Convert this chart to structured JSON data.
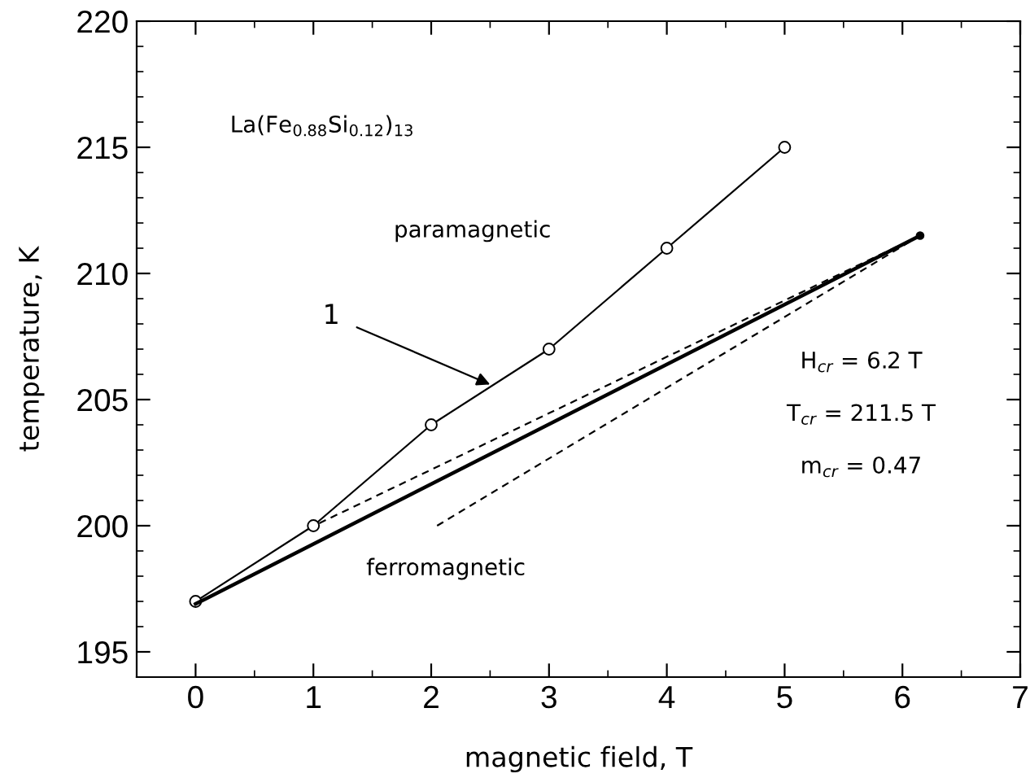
{
  "chart_data": {
    "type": "line",
    "xlabel": "magnetic field, T",
    "ylabel": "temperature, K",
    "xlim": [
      -0.5,
      7
    ],
    "ylim": [
      194,
      220
    ],
    "xticks": [
      0,
      1,
      2,
      3,
      4,
      5,
      6,
      7
    ],
    "yticks": [
      195,
      200,
      205,
      210,
      215,
      220
    ],
    "grid": false,
    "series": [
      {
        "color": "#000000",
        "marker": "circle",
        "line_style": "solid",
        "x": [
          0,
          1,
          2,
          3,
          4,
          5
        ],
        "values": [
          197,
          200,
          204,
          207,
          211,
          215
        ]
      },
      {
        "color": "#000000",
        "marker": "none",
        "line_style": "solid",
        "x": [
          0,
          6.15
        ],
        "values": [
          196.9,
          211.5
        ]
      },
      {
        "color": "#000000",
        "marker": "none",
        "line_style": "dashed",
        "x": [
          1.05,
          6.15
        ],
        "values": [
          200.1,
          211.5
        ]
      },
      {
        "color": "#000000",
        "marker": "none",
        "line_style": "dashed",
        "x": [
          2.05,
          6.15
        ],
        "values": [
          200,
          211.5
        ]
      },
      {
        "type": "scatter",
        "color": "#000000",
        "marker": "circle",
        "x": [
          6.15
        ],
        "values": [
          211.5
        ]
      }
    ],
    "annotations": [
      "La(Fe$_{0.88}$Si$_{0.12}$)$_{13}$",
      "paramagnetic",
      {
        "text": "1",
        "x": 2.5,
        "y": 205.6
      },
      "ferromagnetic",
      "H$_{cr}$ = 6.2 T",
      "T$_{cr}$ = 211.5 T",
      "m$_{cr}$ = 0.47"
    ]
  }
}
